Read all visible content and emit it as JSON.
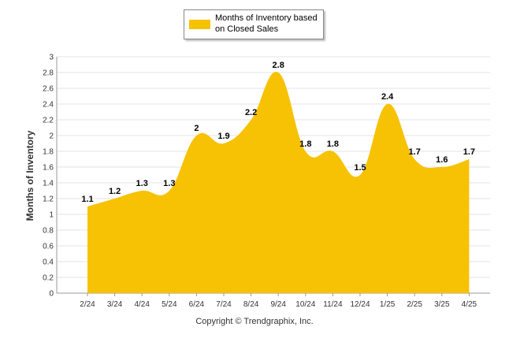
{
  "chart_data": {
    "type": "area",
    "categories": [
      "2/24",
      "3/24",
      "4/24",
      "5/24",
      "6/24",
      "7/24",
      "8/24",
      "9/24",
      "10/24",
      "11/24",
      "12/24",
      "1/25",
      "2/25",
      "3/25",
      "4/25"
    ],
    "series": [
      {
        "name": "Months of Inventory based on Closed Sales",
        "values": [
          1.1,
          1.2,
          1.3,
          1.3,
          2,
          1.9,
          2.2,
          2.8,
          1.8,
          1.8,
          1.5,
          2.4,
          1.7,
          1.6,
          1.7
        ]
      }
    ],
    "data_labels": [
      "1.1",
      "1.2",
      "1.3",
      "1.3",
      "2",
      "1.9",
      "2.2",
      "2.8",
      "1.8",
      "1.8",
      "1.5",
      "2.4",
      "1.7",
      "1.6",
      "1.7"
    ],
    "ylabel": "Months of Inventory",
    "xlabel": "",
    "ylim": [
      0,
      3
    ],
    "yticks": [
      "0",
      "0.2",
      "0.4",
      "0.6",
      "0.8",
      "1",
      "1.2",
      "1.4",
      "1.6",
      "1.8",
      "2",
      "2.2",
      "2.4",
      "2.6",
      "2.8",
      "3"
    ],
    "legend_position": "top-center",
    "grid": true,
    "colors": {
      "area": "#F7C204",
      "grid": "#e3e3e3",
      "axis": "#999999"
    }
  },
  "legend": {
    "label": "Months of Inventory based on Closed Sales"
  },
  "footer": {
    "copyright": "Copyright © Trendgraphix, Inc."
  }
}
